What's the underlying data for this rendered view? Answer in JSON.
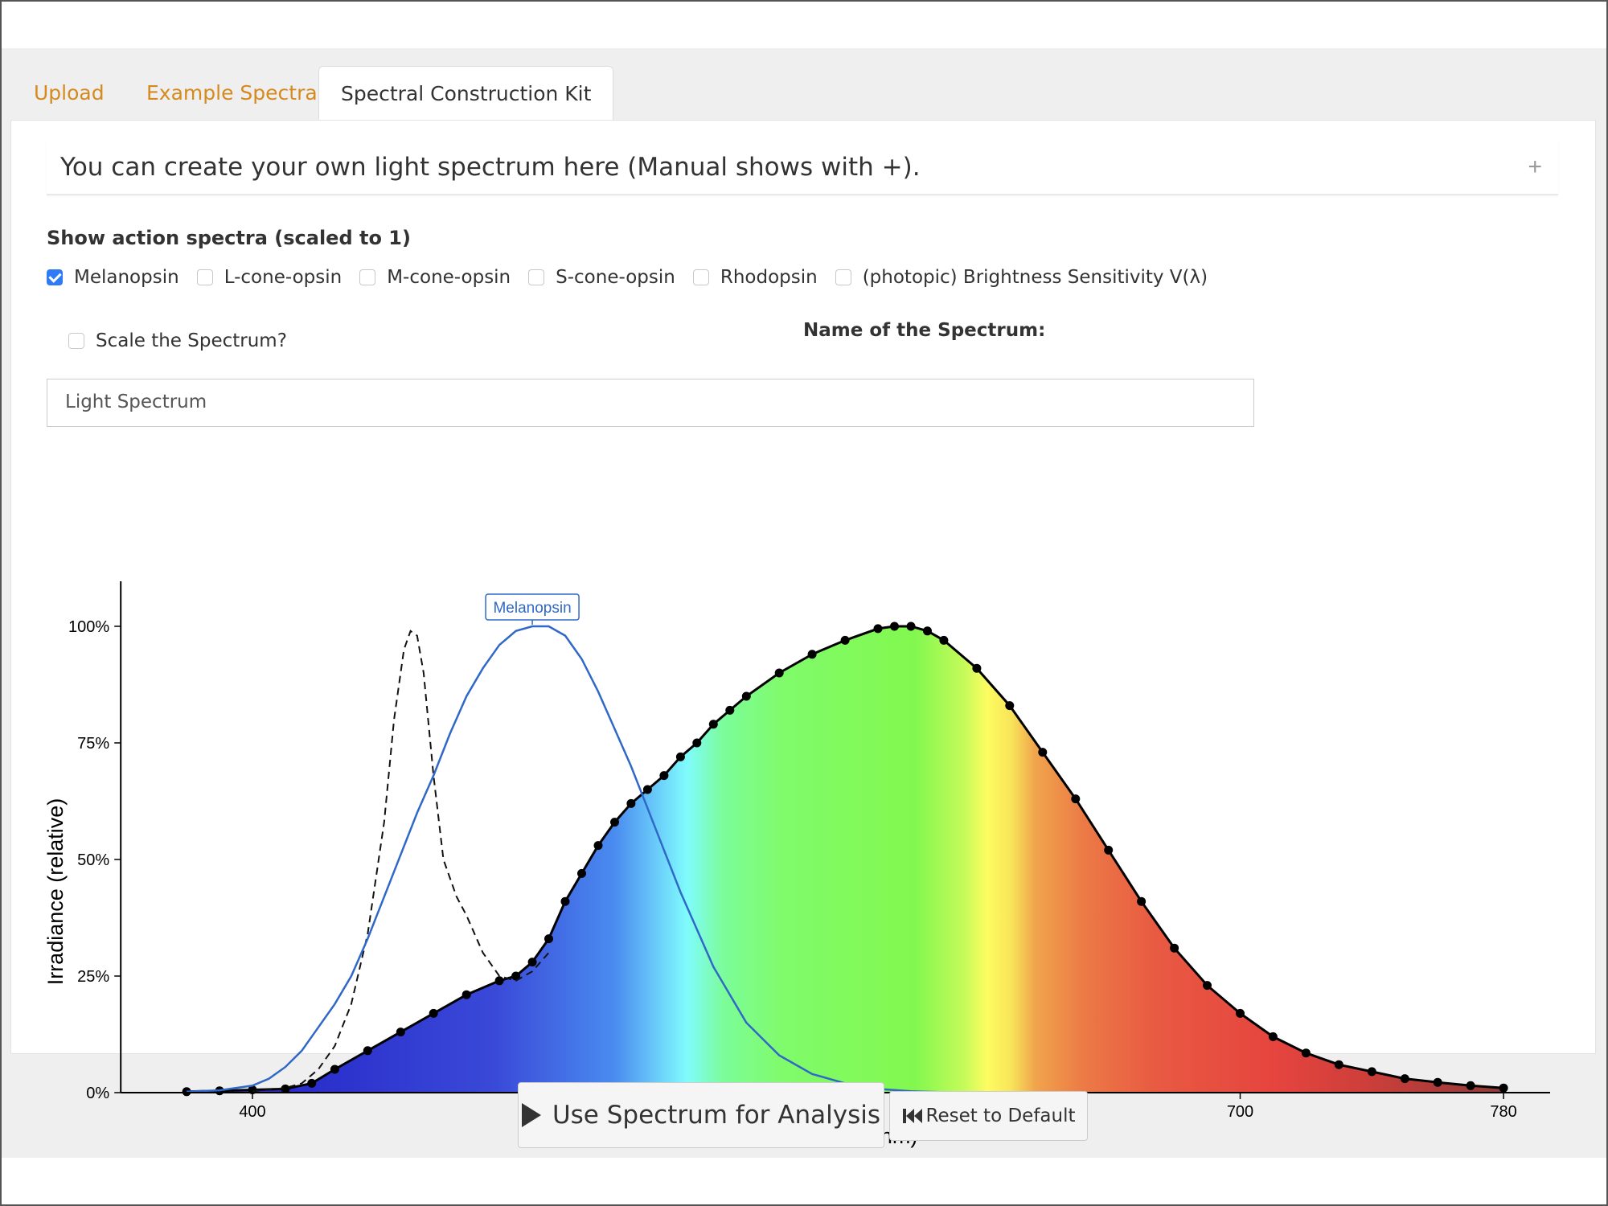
{
  "tabs": [
    {
      "label": "Upload",
      "active": false
    },
    {
      "label": "Example Spectra",
      "active": false
    },
    {
      "label": "Spectral Construction Kit",
      "active": true
    }
  ],
  "info": {
    "text": "You can create your own light spectrum here (Manual shows with +).",
    "toggle": "+"
  },
  "action_spectra": {
    "title": "Show action spectra (scaled to 1)",
    "options": [
      {
        "label": "Melanopsin",
        "checked": true
      },
      {
        "label": "L-cone-opsin",
        "checked": false
      },
      {
        "label": "M-cone-opsin",
        "checked": false
      },
      {
        "label": "S-cone-opsin",
        "checked": false
      },
      {
        "label": "Rhodopsin",
        "checked": false
      },
      {
        "label": "(photopic) Brightness Sensitivity V(λ)",
        "checked": false
      }
    ]
  },
  "scale": {
    "label": "Scale the Spectrum?",
    "checked": false
  },
  "spectrum_name": {
    "label": "Name of the Spectrum:",
    "value": "Light Spectrum"
  },
  "buttons": {
    "use_label": "Use Spectrum for Analysis",
    "reset_label": "Reset to Default"
  },
  "colors": {
    "tab_link": "#d68a1e",
    "checkbox_checked": "#2f7bf5",
    "melanopsin_curve": "#3068c8",
    "spectrum_outline": "#000000"
  },
  "icons": {
    "use": "play-icon",
    "reset": "skip-back-icon",
    "toggle": "plus-icon"
  },
  "chart_data": {
    "type": "area",
    "xlabel": "Wavelength (nm)",
    "ylabel": "Irradiance (relative)",
    "xlim": [
      360,
      800
    ],
    "ylim": [
      0,
      1.1
    ],
    "xticks": [
      400,
      500,
      600,
      700,
      780
    ],
    "yticks": [
      0,
      0.25,
      0.5,
      0.75,
      1
    ],
    "ytick_labels": [
      "0%",
      "25%",
      "50%",
      "75%",
      "100%"
    ],
    "series": [
      {
        "role": "spectrum",
        "style": "colored-area-black-dots",
        "x": [
          380,
          390,
          400,
          410,
          418,
          425,
          435,
          445,
          455,
          465,
          475,
          480,
          485,
          490,
          495,
          500,
          505,
          510,
          515,
          520,
          525,
          530,
          535,
          540,
          545,
          550,
          560,
          570,
          580,
          590,
          595,
          600,
          605,
          610,
          620,
          630,
          640,
          650,
          660,
          670,
          680,
          690,
          700,
          710,
          720,
          730,
          740,
          750,
          760,
          770,
          780
        ],
        "y": [
          0.002,
          0.004,
          0.006,
          0.008,
          0.02,
          0.05,
          0.09,
          0.13,
          0.17,
          0.21,
          0.24,
          0.25,
          0.28,
          0.33,
          0.41,
          0.47,
          0.53,
          0.58,
          0.62,
          0.65,
          0.68,
          0.72,
          0.75,
          0.79,
          0.82,
          0.85,
          0.9,
          0.94,
          0.97,
          0.995,
          1.0,
          1.0,
          0.99,
          0.97,
          0.91,
          0.83,
          0.73,
          0.63,
          0.52,
          0.41,
          0.31,
          0.23,
          0.17,
          0.12,
          0.085,
          0.06,
          0.045,
          0.03,
          0.022,
          0.015,
          0.01
        ]
      },
      {
        "role": "reference",
        "style": "dashed",
        "x": [
          400,
          410,
          415,
          420,
          425,
          430,
          435,
          440,
          443,
          446,
          448,
          450,
          452,
          455,
          458,
          462,
          465,
          470,
          475,
          480,
          485,
          490
        ],
        "y": [
          0.003,
          0.01,
          0.02,
          0.05,
          0.1,
          0.19,
          0.34,
          0.58,
          0.8,
          0.95,
          0.99,
          0.98,
          0.9,
          0.68,
          0.5,
          0.42,
          0.38,
          0.3,
          0.25,
          0.24,
          0.26,
          0.3
        ]
      },
      {
        "name": "Melanopsin",
        "style": "blue-line",
        "x": [
          380,
          390,
          400,
          405,
          410,
          415,
          420,
          425,
          430,
          435,
          440,
          445,
          450,
          455,
          460,
          465,
          470,
          475,
          480,
          485,
          490,
          495,
          500,
          505,
          510,
          515,
          520,
          525,
          530,
          540,
          550,
          560,
          570,
          580,
          590,
          600,
          610
        ],
        "y": [
          0.002,
          0.005,
          0.015,
          0.03,
          0.055,
          0.09,
          0.14,
          0.19,
          0.25,
          0.33,
          0.42,
          0.51,
          0.6,
          0.68,
          0.77,
          0.85,
          0.91,
          0.96,
          0.99,
          1.0,
          1.0,
          0.98,
          0.93,
          0.86,
          0.78,
          0.7,
          0.61,
          0.52,
          0.43,
          0.27,
          0.15,
          0.08,
          0.04,
          0.02,
          0.008,
          0.003,
          0.001
        ]
      }
    ]
  }
}
